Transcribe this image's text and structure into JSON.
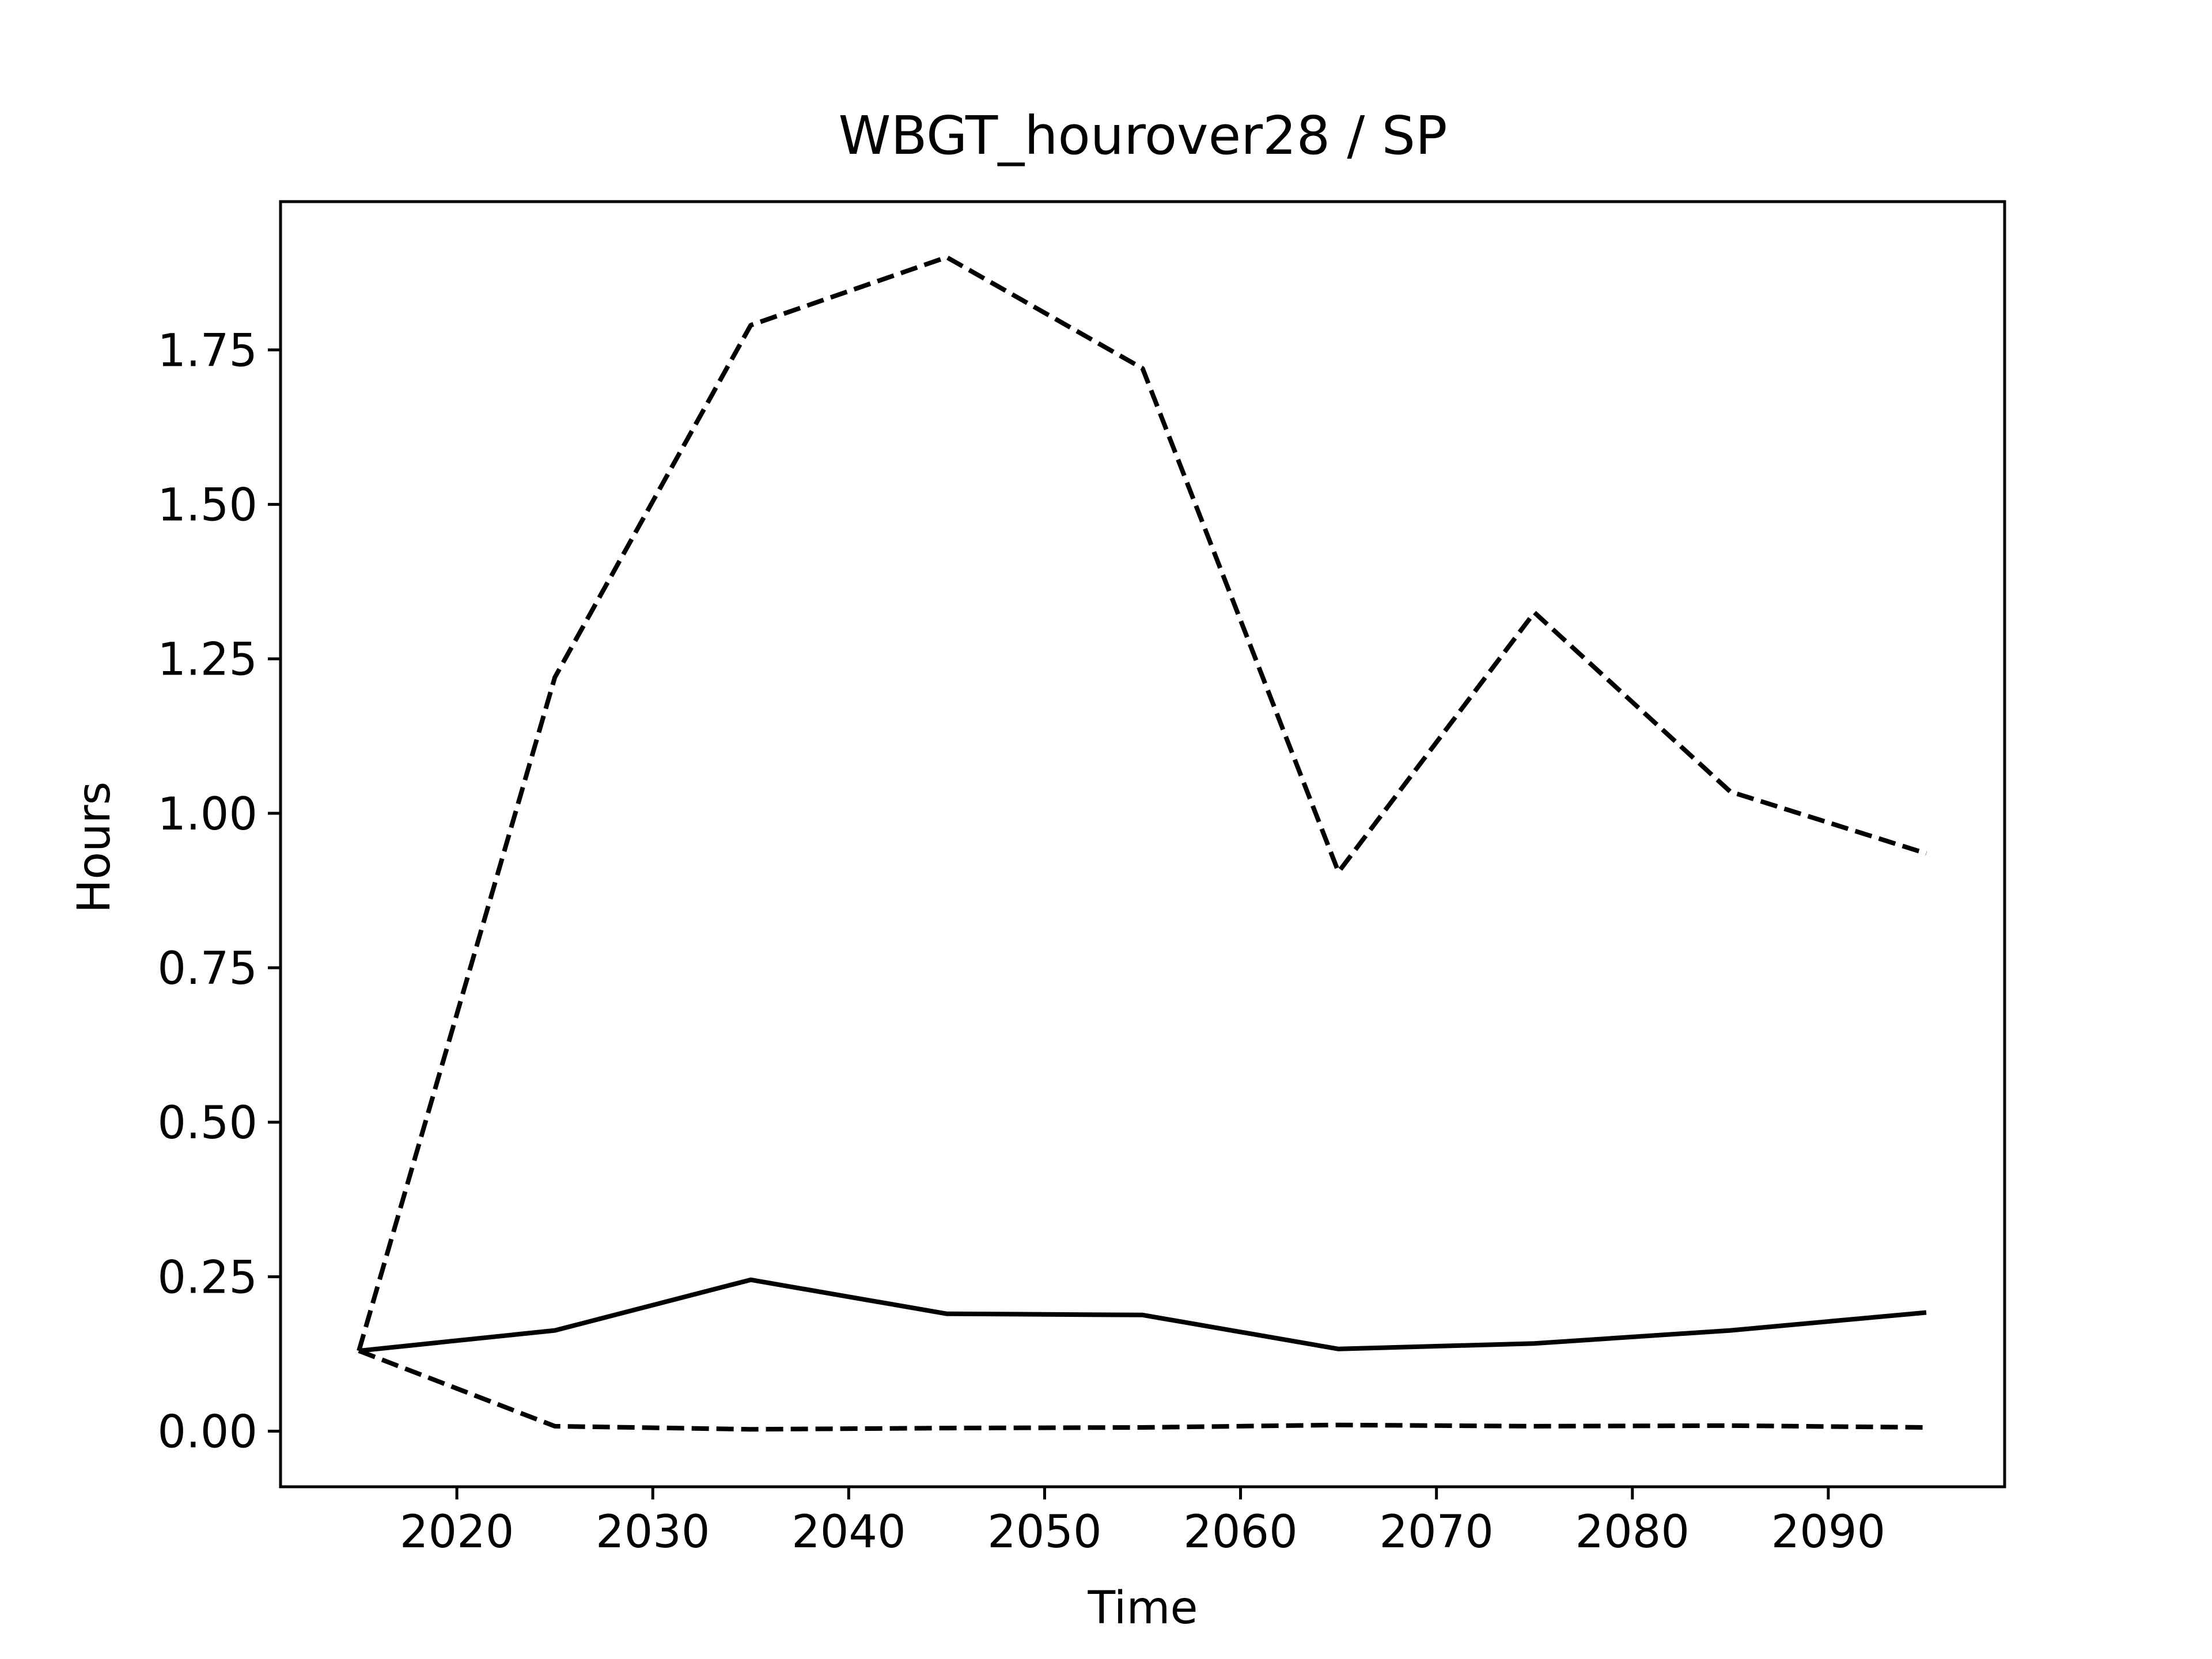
{
  "chart_data": {
    "type": "line",
    "title": "WBGT_hourover28 / SP",
    "xlabel": "Time",
    "ylabel": "Hours",
    "xlim": [
      2011,
      2099
    ],
    "ylim": [
      -0.09,
      1.99
    ],
    "xticks": [
      2020,
      2030,
      2040,
      2050,
      2060,
      2070,
      2080,
      2090
    ],
    "yticks": [
      0.0,
      0.25,
      0.5,
      0.75,
      1.0,
      1.25,
      1.5,
      1.75
    ],
    "ytick_labels": [
      "0.00",
      "0.25",
      "0.50",
      "0.75",
      "1.00",
      "1.25",
      "1.50",
      "1.75"
    ],
    "grid": false,
    "x": [
      2015,
      2025,
      2035,
      2045,
      2055,
      2065,
      2075,
      2085,
      2095
    ],
    "series": [
      {
        "style": "solid",
        "color": "#000000",
        "values": [
          0.13,
          0.163,
          0.245,
          0.19,
          0.188,
          0.133,
          0.142,
          0.163,
          0.192
        ]
      },
      {
        "style": "dashed",
        "color": "#000000",
        "values": [
          0.13,
          1.22,
          1.79,
          1.9,
          1.72,
          0.905,
          1.325,
          1.035,
          0.935
        ]
      },
      {
        "style": "dashed",
        "color": "#000000",
        "values": [
          0.13,
          0.008,
          0.003,
          0.005,
          0.006,
          0.01,
          0.008,
          0.009,
          0.006
        ]
      }
    ]
  }
}
